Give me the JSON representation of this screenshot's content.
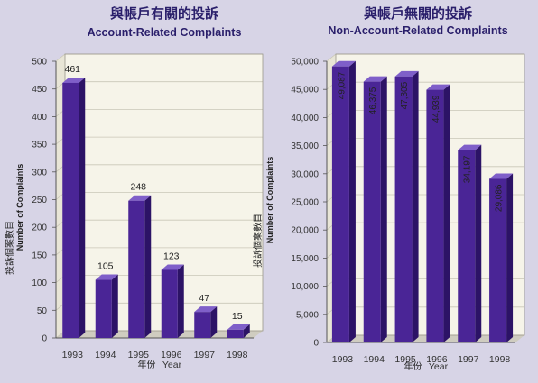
{
  "colors": {
    "background": "#d7d4e6",
    "plot_back": "#f6f4e9",
    "plot_floor": "#cfccc0",
    "grid": "#c9c6b8",
    "bar_front": "#4a2596",
    "bar_top": "#7f5fc9",
    "bar_side": "#2c1366",
    "title": "#2a1f6b"
  },
  "chart_data": [
    {
      "type": "bar",
      "title_cn": "與帳戶有關的投訴",
      "title": "Account-Related Complaints",
      "ylabel": "Number of Complaints",
      "ylabel_cn": "投訴個案數目",
      "xlabel": "Year",
      "xlabel_cn": "年份",
      "categories": [
        "1993",
        "1994",
        "1995",
        "1996",
        "1997",
        "1998"
      ],
      "values": [
        461,
        105,
        248,
        123,
        47,
        15
      ],
      "value_labels": [
        "461",
        "105",
        "248",
        "123",
        "47",
        "15"
      ],
      "yticks": [
        "0",
        "50",
        "100",
        "150",
        "200",
        "250",
        "300",
        "350",
        "400",
        "450",
        "500"
      ],
      "ylim": [
        0,
        500
      ],
      "grid": true,
      "label_rotated": false
    },
    {
      "type": "bar",
      "title_cn": "與帳戶無關的投訴",
      "title": "Non-Account-Related Complaints",
      "ylabel": "Number of Complaints",
      "ylabel_cn": "投訴個案數目",
      "xlabel": "Year",
      "xlabel_cn": "年份",
      "categories": [
        "1993",
        "1994",
        "1995",
        "1996",
        "1997",
        "1998"
      ],
      "values": [
        49087,
        46375,
        47305,
        44939,
        34197,
        29086
      ],
      "value_labels": [
        "49,087",
        "46,375",
        "47,305",
        "44,939",
        "34,197",
        "29,086"
      ],
      "yticks": [
        "0",
        "5,000",
        "10,000",
        "15,000",
        "20,000",
        "25,000",
        "30,000",
        "35,000",
        "40,000",
        "45,000",
        "50,000"
      ],
      "ylim": [
        0,
        50000
      ],
      "grid": true,
      "label_rotated": true
    }
  ]
}
